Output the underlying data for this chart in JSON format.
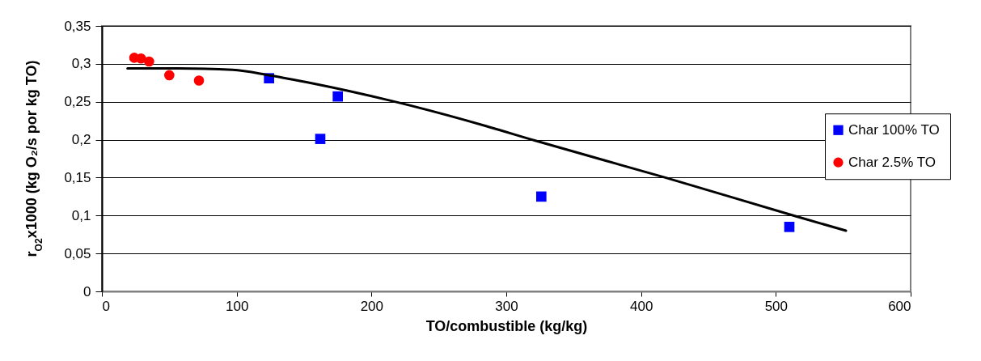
{
  "chart_data": {
    "type": "scatter",
    "xlabel": "TO/combustible (kg/kg)",
    "ylabel": "r$_{O2}$x1000 (kg O₂/s por kg TO)",
    "series": [
      {
        "name": "Char 100% TO",
        "color": "#0000ff",
        "marker": "square",
        "x": [
          124,
          162,
          175,
          326,
          510
        ],
        "values": [
          0.281,
          0.201,
          0.257,
          0.125,
          0.085
        ]
      },
      {
        "name": "Char 2.5% TO",
        "color": "#ff0000",
        "marker": "circle",
        "x": [
          24,
          29,
          35,
          50,
          72
        ],
        "values": [
          0.308,
          0.307,
          0.303,
          0.285,
          0.278
        ]
      },
      {
        "type": "line",
        "color": "#000000",
        "x": [
          19,
          56,
          97,
          124,
          157,
          213,
          285,
          321,
          418,
          515,
          552
        ],
        "values": [
          0.294,
          0.294,
          0.292,
          0.285,
          0.274,
          0.252,
          0.218,
          0.199,
          0.15,
          0.099,
          0.08
        ]
      }
    ],
    "xlim": [
      0,
      600
    ],
    "xticks": [
      0,
      100,
      200,
      300,
      400,
      500,
      600
    ],
    "ylim": [
      0,
      0.35
    ],
    "yticks": [
      0,
      {
        "value": 0.05,
        "label": "0,05"
      },
      {
        "value": 0.1,
        "label": "0,1"
      },
      {
        "value": 0.15,
        "label": "0,15"
      },
      {
        "value": 0.2,
        "label": "0,2"
      },
      {
        "value": 0.25,
        "label": "0,25"
      },
      {
        "value": 0.3,
        "label": "0,3"
      },
      {
        "value": 0.35,
        "label": "0,35"
      }
    ],
    "grid": "y",
    "legend": "right"
  }
}
